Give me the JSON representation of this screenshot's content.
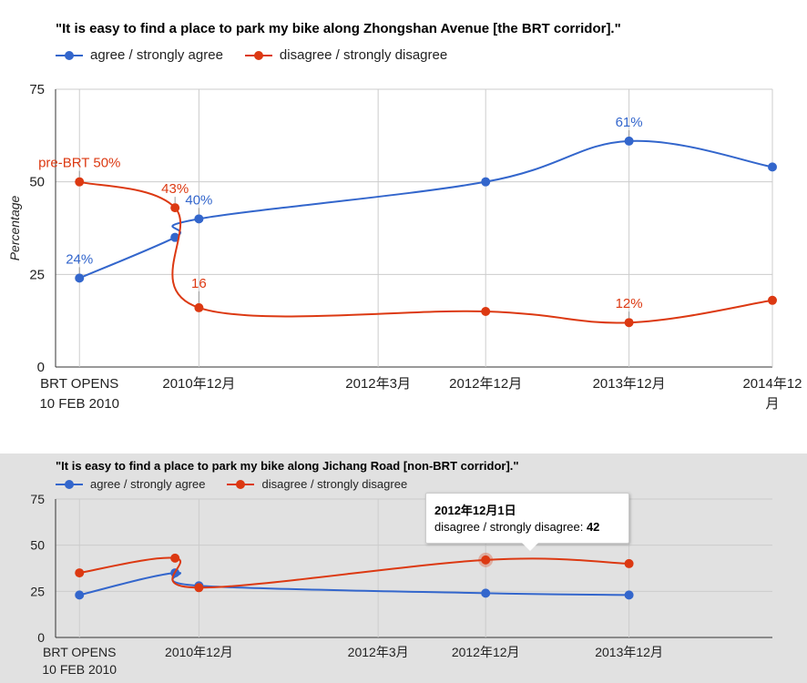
{
  "colors": {
    "agree": "#3366cc",
    "disagree": "#dc3912",
    "grid": "#cccccc",
    "axis": "#333333",
    "label": "#222222"
  },
  "legend": {
    "agree": "agree / strongly agree",
    "disagree": "disagree / strongly disagree"
  },
  "tooltip": {
    "date": "2012年12月1日",
    "label": "disagree / strongly disagree:",
    "value": "42"
  },
  "chart_data": [
    {
      "type": "line",
      "title": "\"It is easy to find a place to park my bike along Zhongshan Avenue [the BRT corridor].\"",
      "ylabel": "Percentage",
      "ylim": [
        0,
        75
      ],
      "yticks": [
        "0",
        "25",
        "50",
        "75"
      ],
      "grid": true,
      "legend_position": "top",
      "xlim": [
        "2009-12",
        "2014-12"
      ],
      "x_ticks": [
        {
          "x": "2010-02",
          "label": [
            "BRT OPENS",
            "10 FEB 2010"
          ]
        },
        {
          "x": "2010-12",
          "label": [
            "2010年12月"
          ]
        },
        {
          "x": "2012-03",
          "label": [
            "2012年3月"
          ]
        },
        {
          "x": "2012-12",
          "label": [
            "2012年12月"
          ]
        },
        {
          "x": "2013-12",
          "label": [
            "2013年12月"
          ]
        },
        {
          "x": "2014-12",
          "label": [
            "2014年12",
            "月"
          ]
        }
      ],
      "series": [
        {
          "name": "agree / strongly agree",
          "key": "agree",
          "points": [
            {
              "x": "2010-02",
              "y": 24,
              "label": "24%"
            },
            {
              "x": "2010-10",
              "y": 35
            },
            {
              "x": "2010-12",
              "y": 40,
              "label": "40%"
            },
            {
              "x": "2012-12",
              "y": 50
            },
            {
              "x": "2013-12",
              "y": 61,
              "label": "61%"
            },
            {
              "x": "2014-12",
              "y": 54
            }
          ]
        },
        {
          "name": "disagree / strongly disagree",
          "key": "disagree",
          "points": [
            {
              "x": "2010-02",
              "y": 50,
              "label": "pre-BRT 50%"
            },
            {
              "x": "2010-10",
              "y": 43,
              "label": "43%"
            },
            {
              "x": "2010-12",
              "y": 16,
              "label": "16"
            },
            {
              "x": "2012-12",
              "y": 15
            },
            {
              "x": "2013-12",
              "y": 12,
              "label": "12%"
            },
            {
              "x": "2014-12",
              "y": 18
            }
          ]
        }
      ]
    },
    {
      "type": "line",
      "title": "\"It is easy to find a place to park my bike along Jichang Road [non-BRT corridor].\"",
      "ylim": [
        0,
        75
      ],
      "yticks": [
        "0",
        "25",
        "50",
        "75"
      ],
      "grid": true,
      "legend_position": "top",
      "xlim": [
        "2009-12",
        "2014-12"
      ],
      "x_ticks": [
        {
          "x": "2010-02",
          "label": [
            "BRT OPENS",
            "10 FEB 2010"
          ]
        },
        {
          "x": "2010-12",
          "label": [
            "2010年12月"
          ]
        },
        {
          "x": "2012-03",
          "label": [
            "2012年3月"
          ]
        },
        {
          "x": "2012-12",
          "label": [
            "2012年12月"
          ]
        },
        {
          "x": "2013-12",
          "label": [
            "2013年12月"
          ]
        }
      ],
      "series": [
        {
          "name": "agree / strongly agree",
          "key": "agree",
          "points": [
            {
              "x": "2010-02",
              "y": 23
            },
            {
              "x": "2010-10",
              "y": 35
            },
            {
              "x": "2010-12",
              "y": 28
            },
            {
              "x": "2012-12",
              "y": 24
            },
            {
              "x": "2013-12",
              "y": 23
            }
          ]
        },
        {
          "name": "disagree / strongly disagree",
          "key": "disagree",
          "points": [
            {
              "x": "2010-02",
              "y": 35
            },
            {
              "x": "2010-10",
              "y": 43
            },
            {
              "x": "2010-12",
              "y": 27
            },
            {
              "x": "2012-12",
              "y": 42,
              "highlight": true
            },
            {
              "x": "2013-12",
              "y": 40
            }
          ]
        }
      ]
    }
  ]
}
